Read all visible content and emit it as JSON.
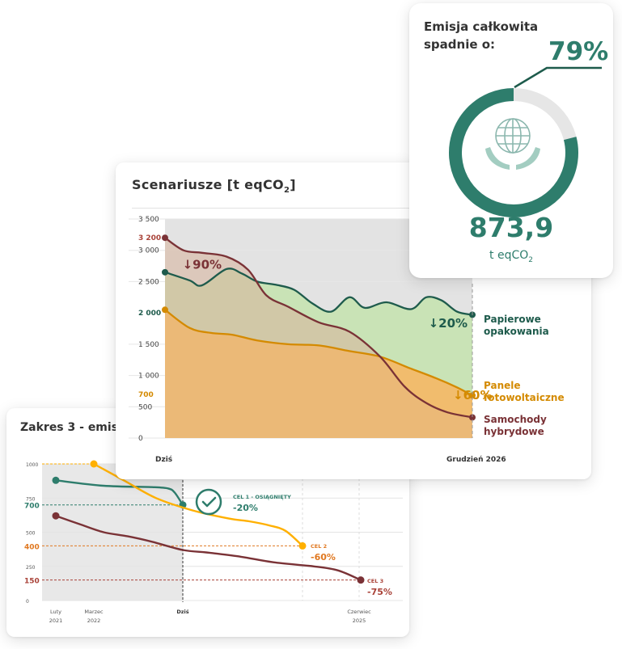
{
  "colors": {
    "green": "#2e7d6c",
    "dark_green": "#1e5b4c",
    "orange": "#d48a00",
    "yellow": "#ffb000",
    "dark_red": "#7a3236",
    "orange_label": "#e07820",
    "red_label": "#a94238",
    "gray": "#666666"
  },
  "total_card": {
    "title_line1": "Emisja całkowita",
    "title_line2": "spadnie o:",
    "percent": "79%",
    "percent_value": 79,
    "value": "873,9",
    "unit_prefix": "t eqCO",
    "unit_sub": "2",
    "icon": "globe-in-hands-icon"
  },
  "scenarios_card": {
    "title_prefix": "Scenariusze [t eqCO",
    "title_sub": "2",
    "title_suffix": "]"
  },
  "scope3_card": {
    "title": "Zakres 3 - emisje"
  },
  "chart_data": [
    {
      "id": "scenarios",
      "type": "area",
      "ylim": [
        0,
        3500
      ],
      "y_ticks": [
        "0",
        "500",
        "1 000",
        "1 500",
        "2 500",
        "3 000",
        "3 500"
      ],
      "y_tick_values": [
        0,
        500,
        1000,
        1500,
        2500,
        3000,
        3500
      ],
      "highlight_ticks": [
        {
          "label": "3 200",
          "value": 3200,
          "color": "#a94238"
        },
        {
          "label": "2 000",
          "value": 2000,
          "color": "#1e5b4c"
        },
        {
          "label": "700",
          "value": 700,
          "color": "#d48a00"
        }
      ],
      "x_labels": [
        "Dziś",
        "Grudzień 2026"
      ],
      "series": [
        {
          "name": "Papierowe opakowania",
          "label_line1": "Papierowe",
          "label_line2": "opakowania",
          "color": "#1e5b4c",
          "fill": "#c5e2b0",
          "badge": "↓20%",
          "badge_at": [
            0.82,
            1850
          ],
          "label_value": 2000,
          "t": [
            0,
            0.08,
            0.12,
            0.2,
            0.25,
            0.3,
            0.36,
            0.42,
            0.48,
            0.54,
            0.6,
            0.65,
            0.72,
            0.8,
            0.85,
            0.9,
            0.95,
            1
          ],
          "values": [
            2650,
            2520,
            2440,
            2700,
            2630,
            2500,
            2450,
            2370,
            2150,
            2020,
            2250,
            2080,
            2170,
            2060,
            2250,
            2200,
            2020,
            1970
          ]
        },
        {
          "name": "Panele fotowoltaiczne",
          "label_line1": "Panele",
          "label_line2": "fotowoltaiczne",
          "color": "#d48a00",
          "fill": "#f3b969",
          "badge": "↓60%",
          "badge_at": [
            0.9,
            700
          ],
          "label_value": 700,
          "t": [
            0,
            0.08,
            0.15,
            0.22,
            0.3,
            0.4,
            0.5,
            0.6,
            0.7,
            0.8,
            0.88,
            0.95,
            1
          ],
          "values": [
            2050,
            1760,
            1680,
            1650,
            1560,
            1500,
            1480,
            1390,
            1300,
            1110,
            960,
            810,
            680
          ]
        },
        {
          "name": "Samochody hybrydowe",
          "label_line1": "Samochody",
          "label_line2": "hybrydowe",
          "color": "#7a3236",
          "fill": "#d7b29a",
          "badge": "↓90%",
          "badge_at": [
            0.02,
            2780
          ],
          "label_value": 330,
          "t": [
            0,
            0.06,
            0.12,
            0.2,
            0.27,
            0.33,
            0.4,
            0.5,
            0.6,
            0.7,
            0.78,
            0.85,
            0.92,
            1
          ],
          "values": [
            3200,
            3000,
            2960,
            2900,
            2690,
            2280,
            2100,
            1850,
            1700,
            1300,
            820,
            560,
            410,
            330
          ]
        }
      ]
    },
    {
      "id": "scope3",
      "type": "line",
      "ylim": [
        0,
        1000
      ],
      "y_ticks": [
        "0",
        "250",
        "500",
        "750",
        "1000"
      ],
      "y_tick_values": [
        0,
        250,
        500,
        750,
        1000
      ],
      "highlight_ticks": [
        {
          "label": "700",
          "value": 700,
          "color": "#2e7d6c"
        },
        {
          "label": "400",
          "value": 400,
          "color": "#e07820"
        },
        {
          "label": "150",
          "value": 150,
          "color": "#a94238"
        }
      ],
      "x_labels": [
        {
          "line1": "Luty",
          "line2": "2021"
        },
        {
          "line1": "Marzec",
          "line2": "2022"
        },
        {
          "line1": "Dziś",
          "line2": ""
        },
        {
          "line1": "Czerwiec",
          "line2": "2025"
        }
      ],
      "goals": [
        {
          "label": "CEL 1 - OSIĄGNIĘTY",
          "pct": "-20%",
          "value": 700,
          "color": "#2e7d6c"
        },
        {
          "label": "CEL 2",
          "pct": "-60%",
          "value": 400,
          "color": "#e07820"
        },
        {
          "label": "CEL 3",
          "pct": "-75%",
          "value": 150,
          "color": "#a94238"
        }
      ],
      "series": [
        {
          "name": "green",
          "color": "#2e7d6c",
          "x": [
            0.0,
            0.15,
            0.3,
            0.45,
            0.5,
            0.55
          ],
          "values": [
            880,
            840,
            830,
            820,
            790,
            700
          ]
        },
        {
          "name": "yellow",
          "color": "#ffb000",
          "x": [
            0.17,
            0.25,
            0.35,
            0.48,
            0.6,
            0.7,
            0.8,
            0.88,
            1.0
          ],
          "values": [
            1000,
            880,
            750,
            660,
            600,
            580,
            550,
            510,
            400
          ]
        },
        {
          "name": "red",
          "color": "#7a3236",
          "x": [
            0.0,
            0.1,
            0.2,
            0.3,
            0.4,
            0.5,
            0.6,
            0.7,
            0.8,
            0.9,
            1.0,
            1.2
          ],
          "values": [
            620,
            560,
            500,
            470,
            430,
            370,
            350,
            320,
            280,
            250,
            220,
            150
          ]
        }
      ]
    }
  ]
}
